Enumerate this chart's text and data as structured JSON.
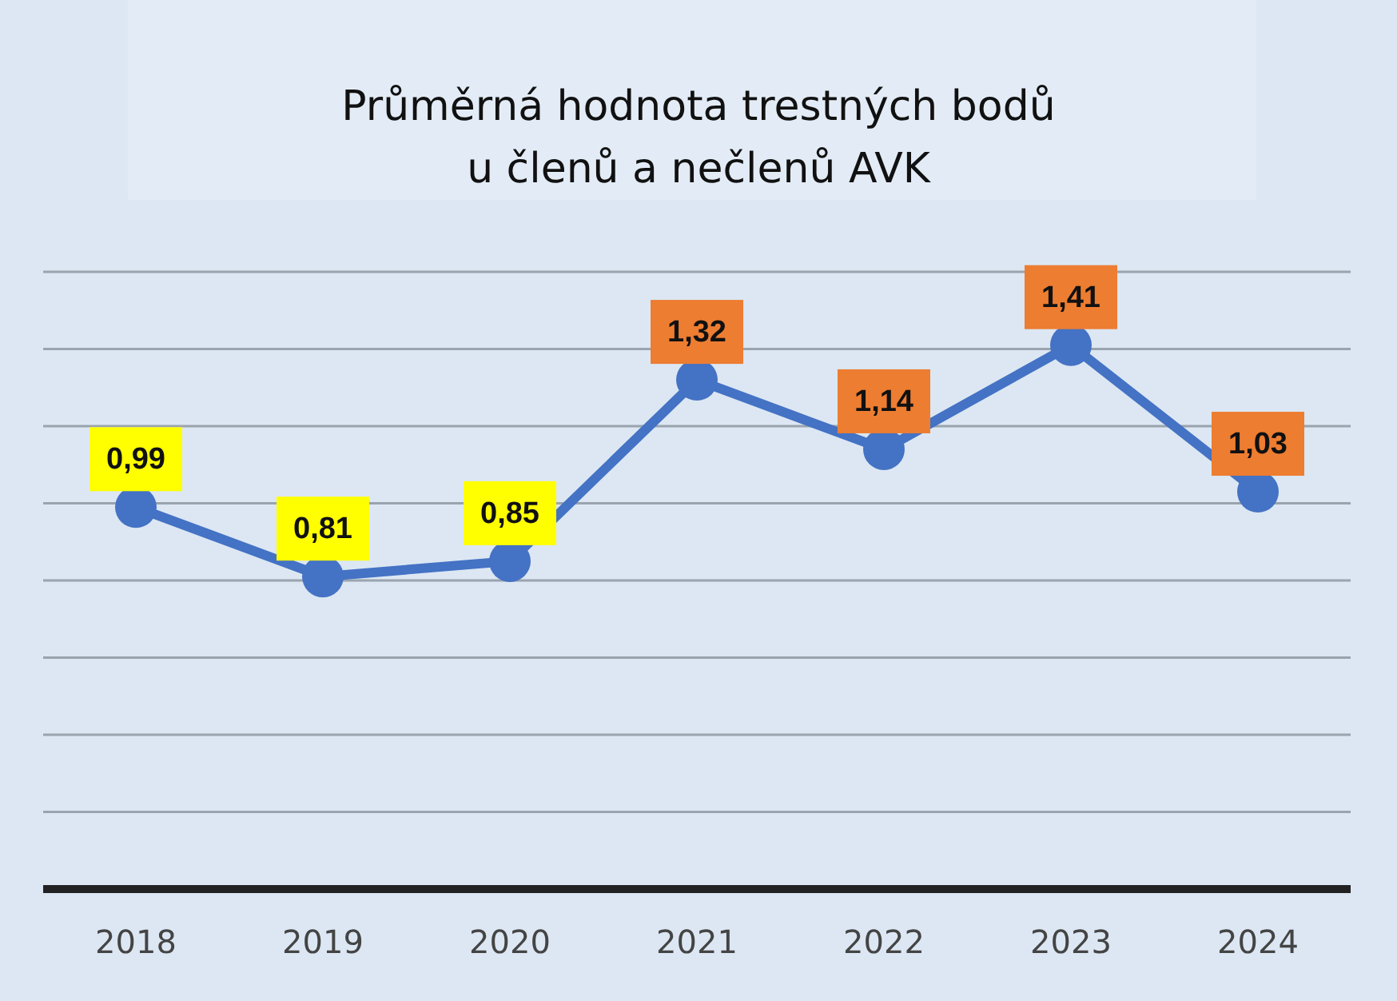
{
  "chart_data": {
    "type": "line",
    "title": "Průměrná hodnota trestných bodů\nu členů a nečlenů AVK",
    "categories": [
      "2018",
      "2019",
      "2020",
      "2021",
      "2022",
      "2023",
      "2024"
    ],
    "series": [
      {
        "color": "#4472c4",
        "values": [
          0.99,
          0.81,
          0.85,
          1.32,
          1.14,
          1.41,
          1.03
        ],
        "value_labels": [
          "0,99",
          "0,81",
          "0,85",
          "1,32",
          "1,14",
          "1,41",
          "1,03"
        ]
      }
    ],
    "ylim": [
      0,
      1.6
    ],
    "yticks": [
      {
        "value": 0,
        "label": null
      },
      {
        "value": 0.2,
        "label": null
      },
      {
        "value": 0.4,
        "label": null
      },
      {
        "value": 0.6,
        "label": null
      },
      {
        "value": 0.8,
        "label": null
      },
      {
        "value": 1.0,
        "label": null
      },
      {
        "value": 1.2,
        "label": null
      },
      {
        "value": 1.4,
        "label": null
      },
      {
        "value": 1.6,
        "label": null
      }
    ],
    "grid": "y",
    "tick_labels": "x",
    "marker": "circle",
    "line_style": "solid"
  }
}
